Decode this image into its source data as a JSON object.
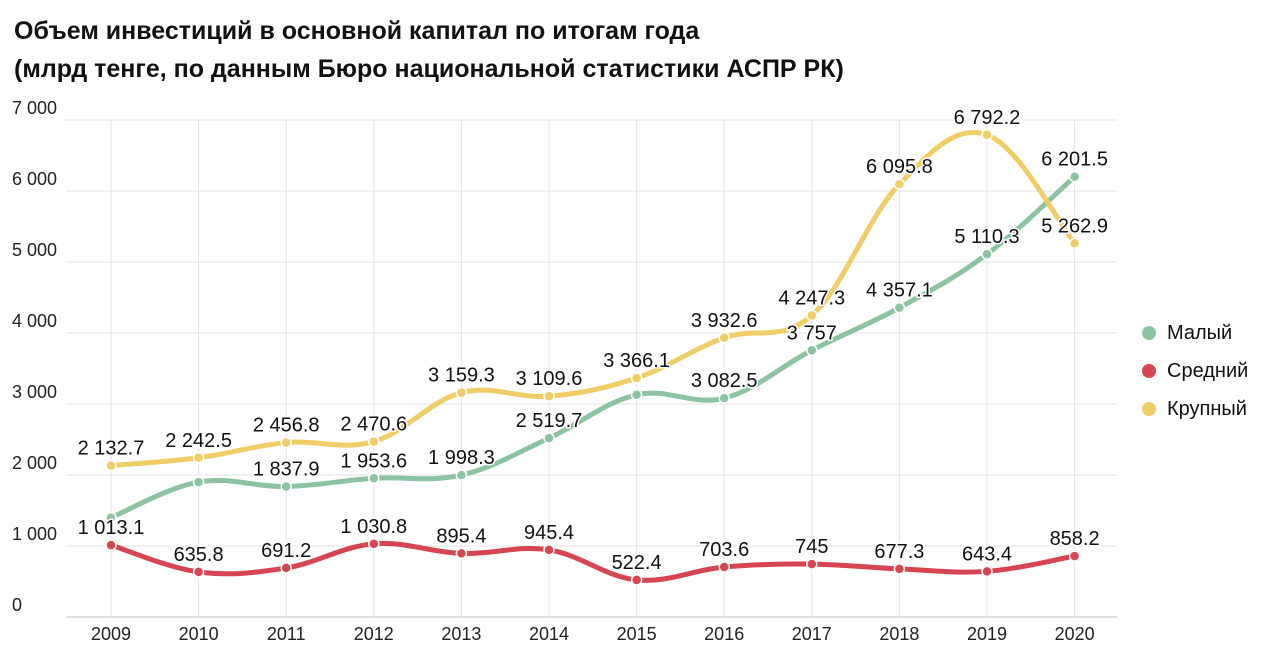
{
  "title_line1": "Объем инвестиций в основной капитал по итогам года",
  "title_line2": "(млрд тенге, по данным Бюро национальной статистики АСПР РК)",
  "chart_data": {
    "type": "line",
    "x": [
      "2009",
      "2010",
      "2011",
      "2012",
      "2013",
      "2014",
      "2015",
      "2016",
      "2017",
      "2018",
      "2019",
      "2020"
    ],
    "ylim": [
      0,
      7000
    ],
    "yticks": [
      0,
      1000,
      2000,
      3000,
      4000,
      5000,
      6000,
      7000
    ],
    "ytick_labels": [
      "0",
      "1 000",
      "2 000",
      "3 000",
      "4 000",
      "5 000",
      "6 000",
      "7 000"
    ],
    "grid": true,
    "legend_position": "right",
    "series": [
      {
        "name": "Малый",
        "color": "#8cc4a3",
        "values": [
          1400,
          1900,
          1837.9,
          1953.6,
          1998.3,
          2519.7,
          3130,
          3082.5,
          3757,
          4357.1,
          5110.3,
          6201.5
        ],
        "labels": [
          "",
          "",
          "1 837.9",
          "1 953.6",
          "1 998.3",
          "2 519.7",
          "",
          "3 082.5",
          "3 757",
          "4 357.1",
          "5 110.3",
          "6 201.5"
        ]
      },
      {
        "name": "Средний",
        "color": "#d64550",
        "values": [
          1013.1,
          635.8,
          691.2,
          1030.8,
          895.4,
          945.4,
          522.4,
          703.6,
          745,
          677.3,
          643.4,
          858.2
        ],
        "labels": [
          "1 013.1",
          "635.8",
          "691.2",
          "1 030.8",
          "895.4",
          "945.4",
          "522.4",
          "703.6",
          "745",
          "677.3",
          "643.4",
          "858.2"
        ]
      },
      {
        "name": "Крупный",
        "color": "#f0cd66",
        "values": [
          2132.7,
          2242.5,
          2456.8,
          2470.6,
          3159.3,
          3109.6,
          3366.1,
          3932.6,
          4247.3,
          6095.8,
          6792.2,
          5262.9
        ],
        "labels": [
          "2 132.7",
          "2 242.5",
          "2 456.8",
          "2 470.6",
          "3 159.3",
          "3 109.6",
          "3 366.1",
          "3 932.6",
          "4 247.3",
          "6 095.8",
          "6 792.2",
          "5 262.9"
        ]
      }
    ]
  }
}
